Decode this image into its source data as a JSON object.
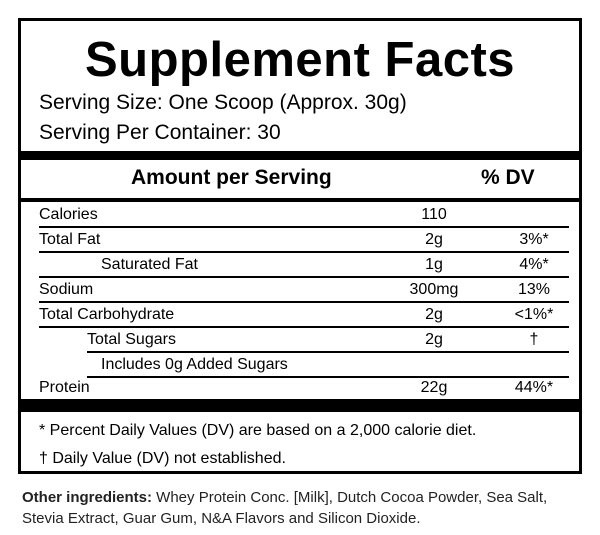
{
  "title": "Supplement Facts",
  "serving_size": "Serving Size:  One Scoop (Approx. 30g)",
  "servings_per_container": "Serving Per Container: 30",
  "header": {
    "amount": "Amount per Serving",
    "dv": "% DV"
  },
  "rows": [
    {
      "name": "Calories",
      "amount": "110",
      "dv": ""
    },
    {
      "name": "Total Fat",
      "amount": "2g",
      "dv": "3%*"
    },
    {
      "name": "Saturated Fat",
      "amount": "1g",
      "dv": "4%*"
    },
    {
      "name": "Sodium",
      "amount": "300mg",
      "dv": "13%"
    },
    {
      "name": "Total Carbohydrate",
      "amount": "2g",
      "dv": "<1%*"
    },
    {
      "name": "Total Sugars",
      "amount": "2g",
      "dv": "†"
    },
    {
      "name": "Includes 0g Added Sugars",
      "amount": "",
      "dv": ""
    },
    {
      "name": "Protein",
      "amount": "22g",
      "dv": "44%*"
    }
  ],
  "footnotes": {
    "daily_values": "* Percent Daily Values (DV) are based on a 2,000 calorie diet.",
    "not_established": "† Daily Value (DV) not established."
  },
  "ingredients": {
    "label": "Other ingredients:",
    "text": " Whey Protein Conc. [Milk], Dutch Cocoa Powder, Sea Salt, Stevia Extract, Guar Gum, N&A Flavors and Silicon Dioxide."
  }
}
